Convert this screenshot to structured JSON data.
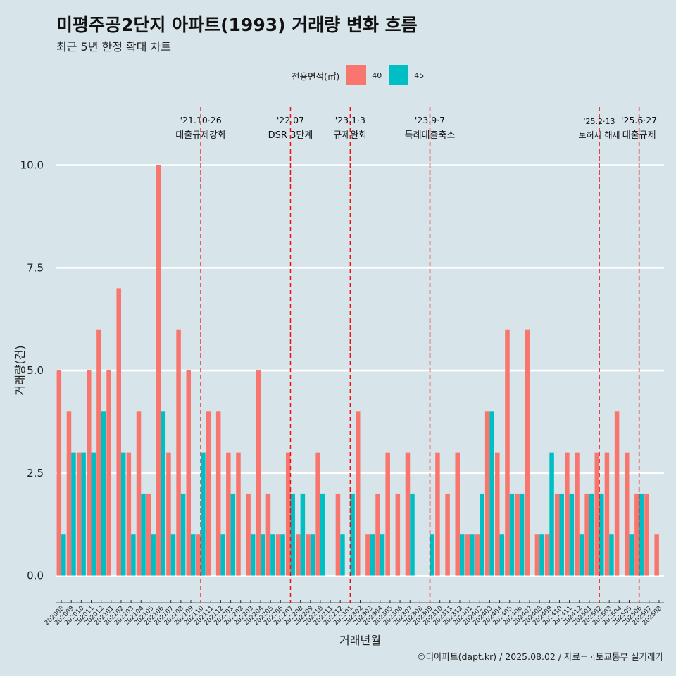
{
  "title": "미평주공2단지 아파트(1993) 거래량 변화 흐름",
  "subtitle": "최근 5년 한정 확대 차트",
  "caption": "©디아파트(dapt.kr) / 2025.08.02 / 자료=국토교통부 실거래가",
  "legend": {
    "title": "전용면적(㎡)",
    "items": [
      {
        "label": "40",
        "color": "#f8766d"
      },
      {
        "label": "45",
        "color": "#00bfc4"
      }
    ]
  },
  "chart_data": {
    "type": "bar",
    "xlabel": "거래년월",
    "ylabel": "거래량(건)",
    "ylim": [
      -0.42,
      11.45
    ],
    "yticks": [
      0.0,
      2.5,
      5.0,
      7.5,
      10.0
    ],
    "ytick_labels": [
      "0.0",
      "2.5",
      "5.0",
      "7.5",
      "10.0"
    ],
    "categories": [
      "202008",
      "202009",
      "202010",
      "202011",
      "202012",
      "202101",
      "202102",
      "202103",
      "202104",
      "202105",
      "202106",
      "202107",
      "202108",
      "202109",
      "202110",
      "202111",
      "202112",
      "202201",
      "202202",
      "202203",
      "202204",
      "202205",
      "202206",
      "202207",
      "202208",
      "202209",
      "202210",
      "202211",
      "202212",
      "202301",
      "202302",
      "202303",
      "202304",
      "202305",
      "202306",
      "202307",
      "202308",
      "202309",
      "202310",
      "202311",
      "202312",
      "202401",
      "202402",
      "202403",
      "202404",
      "202405",
      "202406",
      "202407",
      "202408",
      "202409",
      "202410",
      "202411",
      "202412",
      "202501",
      "202502",
      "202503",
      "202504",
      "202505",
      "202506",
      "202507",
      "202508"
    ],
    "series": [
      {
        "name": "40",
        "color": "#f8766d",
        "values": [
          5,
          4,
          3,
          5,
          6,
          5,
          7,
          3,
          4,
          2,
          10,
          3,
          6,
          5,
          1,
          4,
          4,
          3,
          3,
          2,
          5,
          2,
          1,
          3,
          1,
          1,
          3,
          0,
          2,
          0,
          4,
          1,
          2,
          3,
          2,
          3,
          0,
          0,
          3,
          2,
          3,
          1,
          1,
          4,
          3,
          6,
          2,
          6,
          1,
          1,
          2,
          3,
          3,
          2,
          3,
          3,
          4,
          3,
          2,
          2,
          1
        ]
      },
      {
        "name": "45",
        "color": "#00bfc4",
        "values": [
          1,
          3,
          3,
          3,
          4,
          0,
          3,
          1,
          2,
          1,
          4,
          1,
          2,
          1,
          3,
          0,
          1,
          2,
          0,
          1,
          1,
          1,
          1,
          2,
          2,
          1,
          2,
          0,
          1,
          2,
          0,
          1,
          1,
          0,
          0,
          2,
          0,
          1,
          0,
          0,
          1,
          1,
          2,
          4,
          1,
          2,
          2,
          0,
          1,
          3,
          2,
          2,
          1,
          2,
          2,
          1,
          0,
          1,
          2,
          0,
          0
        ]
      }
    ],
    "annotations": [
      {
        "date": "'21.10·26",
        "label": "대출규제강화",
        "at": 14.5
      },
      {
        "date": "'22.07",
        "label": "DSR 3단계",
        "at": 23.5
      },
      {
        "date": "'23.1·3",
        "label": "규제완화",
        "at": 29.5
      },
      {
        "date": "'23.9·7",
        "label": "특례대출축소",
        "at": 37.5
      },
      {
        "date": "'25.2·13",
        "label": "토허제 해제",
        "at": 54.5
      },
      {
        "date": "'25.6·27",
        "label": "대출규제",
        "at": 58.5
      }
    ]
  }
}
